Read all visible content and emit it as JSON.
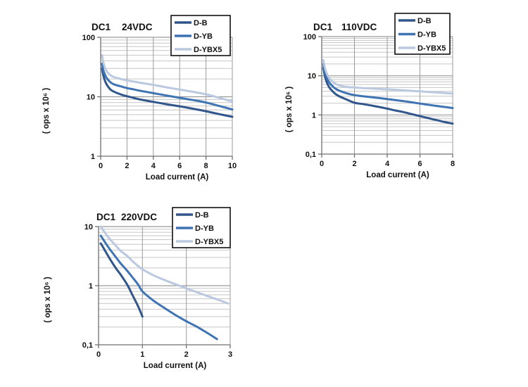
{
  "figure": {
    "background": "#ffffff",
    "text_color": "#111111",
    "grid_minor_color": "#c6c6c6",
    "grid_major_color": "#9b9b9b",
    "axis_color": "#6f6f6f",
    "legend_border_color": "#000000",
    "legend_background": "#ffffff"
  },
  "chart_data": [
    {
      "type": "line",
      "title": {
        "model": "DC1",
        "voltage": "24VDC"
      },
      "xlabel": "Load current (A)",
      "ylabel": "( ops x 10⁶ )",
      "xlim": [
        0,
        10
      ],
      "x_ticks": [
        {
          "v": 0,
          "label": "0"
        },
        {
          "v": 2,
          "label": "2"
        },
        {
          "v": 4,
          "label": "4"
        },
        {
          "v": 6,
          "label": "6"
        },
        {
          "v": 8,
          "label": "8"
        },
        {
          "v": 10,
          "label": "10"
        }
      ],
      "y_scale": "log",
      "ylim": [
        1,
        100
      ],
      "y_ticks": [
        {
          "v": 1,
          "label": "1"
        },
        {
          "v": 10,
          "label": "10"
        },
        {
          "v": 100,
          "label": "100"
        }
      ],
      "grid": true,
      "legend_position": "top-right",
      "legend": [
        "D-B",
        "D-YB",
        "D-YBX5"
      ],
      "series": [
        {
          "name": "D-B",
          "color": "#30568C",
          "points": [
            [
              0.1,
              30
            ],
            [
              0.2,
              23
            ],
            [
              0.35,
              18
            ],
            [
              0.5,
              15.5
            ],
            [
              0.75,
              13.2
            ],
            [
              1,
              12.2
            ],
            [
              1.5,
              11
            ],
            [
              2,
              10.2
            ],
            [
              2.5,
              9.6
            ],
            [
              3,
              9
            ],
            [
              4,
              8.2
            ],
            [
              5,
              7.5
            ],
            [
              6,
              6.9
            ],
            [
              7,
              6.3
            ],
            [
              8,
              5.7
            ],
            [
              9,
              5.1
            ],
            [
              10,
              4.6
            ]
          ]
        },
        {
          "name": "D-YB",
          "color": "#3F74B4",
          "points": [
            [
              0.1,
              36
            ],
            [
              0.2,
              28
            ],
            [
              0.35,
              23
            ],
            [
              0.5,
              20
            ],
            [
              0.75,
              17.5
            ],
            [
              1,
              16.2
            ],
            [
              1.5,
              15
            ],
            [
              2,
              14
            ],
            [
              2.5,
              13.3
            ],
            [
              3,
              12.6
            ],
            [
              4,
              11.5
            ],
            [
              5,
              10.5
            ],
            [
              6,
              9.6
            ],
            [
              7,
              8.8
            ],
            [
              8,
              8
            ],
            [
              9,
              7
            ],
            [
              10,
              6.1
            ]
          ]
        },
        {
          "name": "D-YBX5",
          "color": "#BAC8E0",
          "points": [
            [
              0.1,
              50
            ],
            [
              0.2,
              38
            ],
            [
              0.35,
              30
            ],
            [
              0.5,
              26
            ],
            [
              0.75,
              23
            ],
            [
              1,
              21.5
            ],
            [
              1.5,
              20
            ],
            [
              2,
              18.8
            ],
            [
              2.5,
              18
            ],
            [
              3,
              17.2
            ],
            [
              4,
              15.8
            ],
            [
              5,
              14.4
            ],
            [
              6,
              13.2
            ],
            [
              7,
              12.1
            ],
            [
              8,
              11
            ],
            [
              9,
              9.6
            ],
            [
              10,
              8.3
            ]
          ]
        }
      ]
    },
    {
      "type": "line",
      "title": {
        "model": "DC1",
        "voltage": "110VDC"
      },
      "xlabel": "Load current (A)",
      "ylabel": "( ops x 10⁶ )",
      "xlim": [
        0,
        8
      ],
      "x_ticks": [
        {
          "v": 0,
          "label": "0"
        },
        {
          "v": 2,
          "label": "2"
        },
        {
          "v": 4,
          "label": "4"
        },
        {
          "v": 6,
          "label": "6"
        },
        {
          "v": 8,
          "label": "8"
        }
      ],
      "y_scale": "log",
      "ylim": [
        0.1,
        100
      ],
      "y_ticks": [
        {
          "v": 0.1,
          "label": "0,1"
        },
        {
          "v": 1,
          "label": "1"
        },
        {
          "v": 10,
          "label": "10"
        },
        {
          "v": 100,
          "label": "100"
        }
      ],
      "grid": true,
      "legend_position": "top-right",
      "legend": [
        "D-B",
        "D-YB",
        "D-YBX5"
      ],
      "series": [
        {
          "name": "D-B",
          "color": "#30568C",
          "points": [
            [
              0.1,
              16
            ],
            [
              0.2,
              9.5
            ],
            [
              0.35,
              6.2
            ],
            [
              0.5,
              4.8
            ],
            [
              0.75,
              3.7
            ],
            [
              1,
              3.1
            ],
            [
              1.5,
              2.5
            ],
            [
              2,
              2.05
            ],
            [
              2.5,
              1.9
            ],
            [
              3,
              1.75
            ],
            [
              3.5,
              1.6
            ],
            [
              4,
              1.45
            ],
            [
              4.5,
              1.3
            ],
            [
              5,
              1.18
            ],
            [
              5.5,
              1.05
            ],
            [
              6,
              0.93
            ],
            [
              6.5,
              0.83
            ],
            [
              7,
              0.74
            ],
            [
              7.5,
              0.66
            ],
            [
              8,
              0.6
            ]
          ]
        },
        {
          "name": "D-YB",
          "color": "#3F74B4",
          "points": [
            [
              0.1,
              20
            ],
            [
              0.2,
              12
            ],
            [
              0.35,
              8.2
            ],
            [
              0.5,
              6.4
            ],
            [
              0.75,
              5
            ],
            [
              1,
              4.3
            ],
            [
              1.5,
              3.6
            ],
            [
              2,
              3.2
            ],
            [
              2.5,
              3
            ],
            [
              3,
              2.85
            ],
            [
              3.5,
              2.7
            ],
            [
              4,
              2.55
            ],
            [
              4.5,
              2.4
            ],
            [
              5,
              2.25
            ],
            [
              5.5,
              2.1
            ],
            [
              6,
              1.95
            ],
            [
              6.5,
              1.82
            ],
            [
              7,
              1.7
            ],
            [
              7.5,
              1.6
            ],
            [
              8,
              1.5
            ]
          ]
        },
        {
          "name": "D-YBX5",
          "color": "#BAC8E0",
          "points": [
            [
              0.1,
              25
            ],
            [
              0.2,
              15.5
            ],
            [
              0.35,
              10.5
            ],
            [
              0.5,
              8.3
            ],
            [
              0.75,
              6.6
            ],
            [
              1,
              5.8
            ],
            [
              1.5,
              5.2
            ],
            [
              2,
              5
            ],
            [
              2.5,
              4.85
            ],
            [
              3,
              4.72
            ],
            [
              3.5,
              4.6
            ],
            [
              4,
              4.5
            ],
            [
              4.5,
              4.38
            ],
            [
              5,
              4.25
            ],
            [
              5.5,
              4.12
            ],
            [
              6,
              4
            ],
            [
              6.5,
              3.88
            ],
            [
              7,
              3.75
            ],
            [
              7.5,
              3.62
            ],
            [
              8,
              3.5
            ]
          ]
        }
      ]
    },
    {
      "type": "line",
      "title": {
        "model": "DC1",
        "voltage": "220VDC"
      },
      "xlabel": "Load current (A)",
      "ylabel": "( ops x 10⁶ )",
      "xlim": [
        0,
        3
      ],
      "x_ticks": [
        {
          "v": 0,
          "label": "0"
        },
        {
          "v": 1,
          "label": "1"
        },
        {
          "v": 2,
          "label": "2"
        },
        {
          "v": 3,
          "label": "3"
        }
      ],
      "y_scale": "log",
      "ylim": [
        0.1,
        10
      ],
      "y_ticks": [
        {
          "v": 0.1,
          "label": "0,1"
        },
        {
          "v": 1,
          "label": "1"
        },
        {
          "v": 10,
          "label": "10"
        }
      ],
      "grid": true,
      "legend_position": "top-right",
      "legend": [
        "D-B",
        "D-YB",
        "D-YBX5"
      ],
      "series": [
        {
          "name": "D-B",
          "color": "#30568C",
          "points": [
            [
              0.05,
              5.2
            ],
            [
              0.15,
              3.9
            ],
            [
              0.25,
              2.9
            ],
            [
              0.4,
              1.95
            ],
            [
              0.5,
              1.55
            ],
            [
              0.65,
              1.05
            ],
            [
              0.75,
              0.75
            ],
            [
              0.9,
              0.45
            ],
            [
              1,
              0.3
            ]
          ]
        },
        {
          "name": "D-YB",
          "color": "#3F74B4",
          "points": [
            [
              0.05,
              7
            ],
            [
              0.15,
              5.4
            ],
            [
              0.25,
              4.2
            ],
            [
              0.4,
              3
            ],
            [
              0.5,
              2.4
            ],
            [
              0.65,
              1.8
            ],
            [
              0.75,
              1.45
            ],
            [
              0.9,
              1.05
            ],
            [
              1,
              0.8
            ],
            [
              1.25,
              0.56
            ],
            [
              1.5,
              0.42
            ],
            [
              1.75,
              0.32
            ],
            [
              2,
              0.25
            ],
            [
              2.25,
              0.2
            ],
            [
              2.5,
              0.155
            ],
            [
              2.7,
              0.125
            ]
          ]
        },
        {
          "name": "D-YBX5",
          "color": "#BAC8E0",
          "points": [
            [
              0.05,
              10
            ],
            [
              0.15,
              7.8
            ],
            [
              0.25,
              6.2
            ],
            [
              0.4,
              4.7
            ],
            [
              0.5,
              3.9
            ],
            [
              0.65,
              3.2
            ],
            [
              0.75,
              2.7
            ],
            [
              0.9,
              2.15
            ],
            [
              1,
              1.9
            ],
            [
              1.25,
              1.5
            ],
            [
              1.5,
              1.25
            ],
            [
              1.75,
              1.06
            ],
            [
              2,
              0.9
            ],
            [
              2.25,
              0.77
            ],
            [
              2.5,
              0.66
            ],
            [
              2.75,
              0.57
            ],
            [
              2.95,
              0.5
            ]
          ]
        }
      ]
    }
  ]
}
